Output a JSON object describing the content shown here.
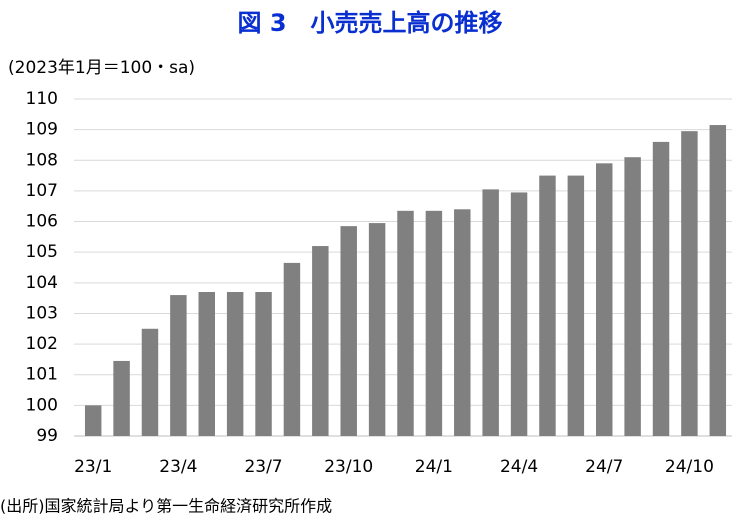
{
  "chart_data": {
    "type": "bar",
    "title": "図 3　小売売上高の推移",
    "y_axis_label": "(2023年1月＝100・sa)",
    "source": "(出所)国家統計局より第一生命経済研究所作成",
    "categories": [
      "23/1",
      null,
      null,
      "23/4",
      null,
      null,
      "23/7",
      null,
      null,
      "23/10",
      null,
      null,
      "24/1",
      null,
      null,
      "24/4",
      null,
      null,
      "24/7",
      null,
      null,
      "24/10",
      null
    ],
    "values": [
      100.0,
      101.45,
      102.5,
      103.6,
      103.7,
      103.7,
      103.7,
      104.65,
      105.2,
      105.85,
      105.95,
      106.35,
      106.35,
      106.4,
      107.05,
      106.95,
      107.5,
      107.5,
      107.9,
      108.1,
      108.6,
      108.95,
      109.15
    ],
    "color": "#808080",
    "ylim": [
      99,
      110
    ],
    "yticks": [
      99,
      100,
      101,
      102,
      103,
      104,
      105,
      106,
      107,
      108,
      109,
      110
    ],
    "grid": true
  }
}
